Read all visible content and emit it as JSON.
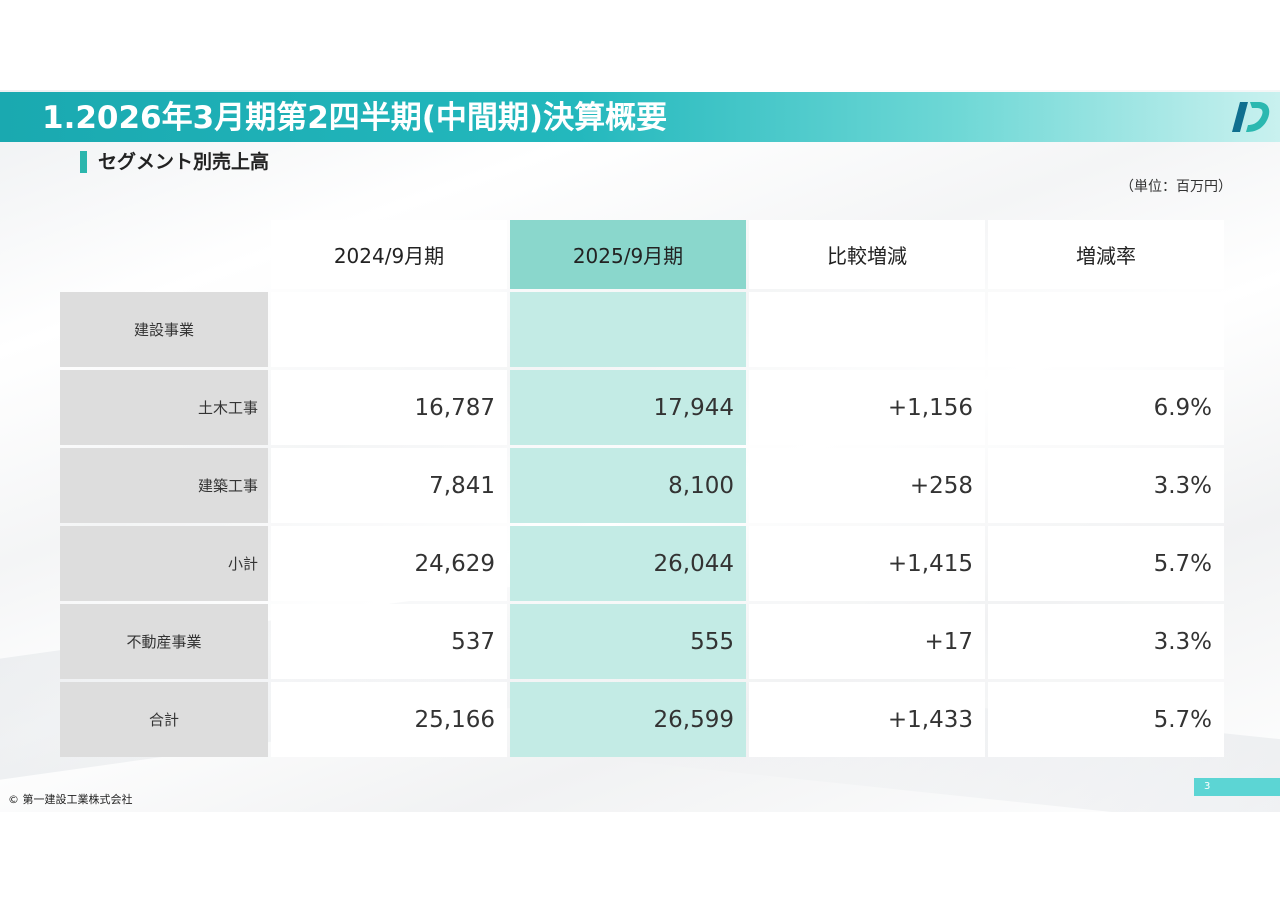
{
  "header": {
    "title": "1.2026年3月期第2四半期(中間期)決算概要",
    "logo_icon": "company-logo-icon"
  },
  "section": {
    "title": "セグメント別売上高"
  },
  "unit_note": "（単位：百万円）",
  "table": {
    "columns": [
      "2024/9月期",
      "2025/9月期",
      "比較増減",
      "増減率"
    ],
    "rows": [
      {
        "label": "建設事業",
        "values": [
          "",
          "",
          "",
          ""
        ]
      },
      {
        "label": "土木工事",
        "values": [
          "16,787",
          "17,944",
          "+1,156",
          "6.9%"
        ]
      },
      {
        "label": "建築工事",
        "values": [
          "7,841",
          "8,100",
          "+258",
          "3.3%"
        ]
      },
      {
        "label": "小計",
        "values": [
          "24,629",
          "26,044",
          "+1,415",
          "5.7%"
        ]
      },
      {
        "label": "不動産事業",
        "values": [
          "537",
          "555",
          "+17",
          "3.3%"
        ]
      },
      {
        "label": "合計",
        "values": [
          "25,166",
          "26,599",
          "+1,433",
          "5.7%"
        ]
      }
    ]
  },
  "footer": {
    "copyright": "© 第一建設工業株式会社",
    "page_number": "3"
  },
  "colors": {
    "title_bar": "#1aa9b0",
    "highlight_header": "#8ad7cc",
    "highlight_cell": "#c3ebe5",
    "row_label_bg": "#dddddd"
  }
}
